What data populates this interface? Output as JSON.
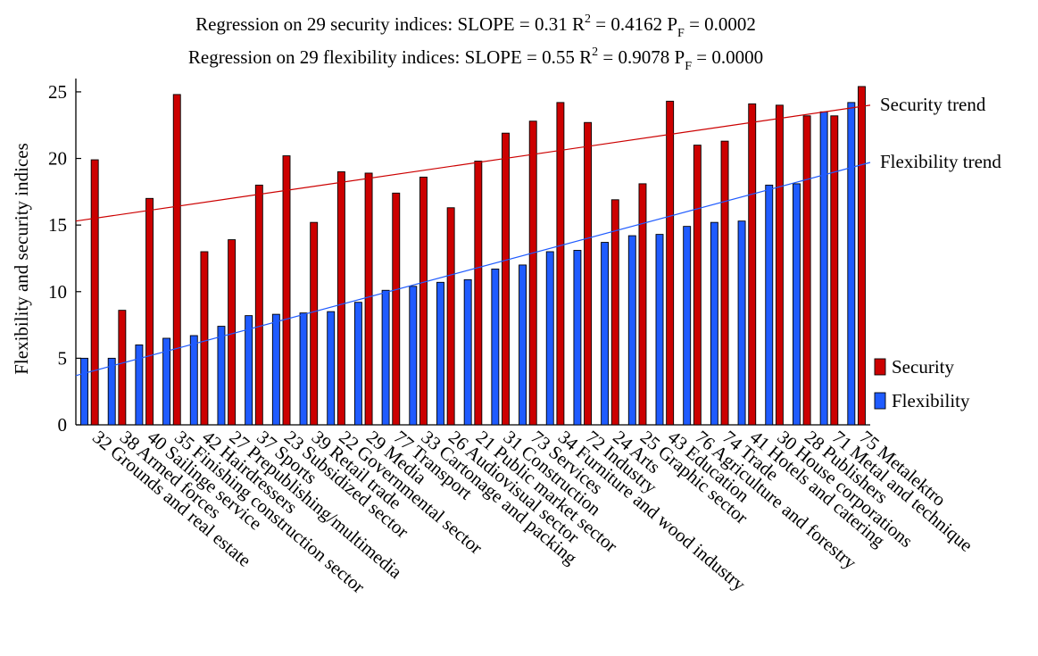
{
  "chart_data": {
    "type": "bar",
    "title_lines": [
      {
        "prefix": "Regression on 29 security indices: SLOPE = 0.31",
        "r2": "0.4162",
        "pf": "0.0002"
      },
      {
        "prefix": "Regression on 29 flexibility indices: SLOPE = 0.55",
        "r2": "0.9078",
        "pf": "0.0000"
      }
    ],
    "ylabel": "Flexibility and security indices",
    "ylim": [
      0,
      26
    ],
    "yticks": [
      0,
      5,
      10,
      15,
      20,
      25
    ],
    "categories": [
      "32 Grounds and real estate",
      "38 Armed forces",
      "40 Sailinge service",
      "35 Finishing construction sector",
      "42 Hairdressers",
      "27 Prepublishing/multimedia",
      "37 Sports",
      "23 Subsidized sector",
      "39 Retail trade",
      "22 Governmental sector",
      "29 Media",
      "77 Transport",
      "33 Cartonage and packing",
      "26 Audiovisual sector",
      "21 Public market sector",
      "31 Construction",
      "73 Services",
      "34 Furniture and wood industry",
      "72 Industry",
      "24 Arts",
      "25 Graphic sector",
      "43 Education",
      "76 Agriculture and forestry",
      "74 Trade",
      "41 Hotels and catering",
      "30 House corporations",
      "28 Publishers",
      "71 Metal and technique",
      "75 Metalektro"
    ],
    "series": [
      {
        "name": "Flexibility",
        "color": "#1f5bff",
        "values": [
          5.0,
          5.0,
          6.0,
          6.5,
          6.7,
          7.4,
          8.2,
          8.3,
          8.4,
          8.5,
          9.2,
          10.1,
          10.4,
          10.7,
          10.9,
          11.7,
          12.0,
          13.0,
          13.1,
          13.7,
          14.2,
          14.3,
          14.9,
          15.2,
          15.3,
          18.0,
          18.1,
          23.5,
          24.2
        ]
      },
      {
        "name": "Security",
        "color": "#cc0000",
        "values": [
          19.9,
          8.6,
          17.0,
          24.8,
          13.0,
          13.9,
          18.0,
          20.2,
          15.2,
          19.0,
          18.9,
          17.4,
          18.6,
          16.3,
          19.8,
          21.9,
          22.8,
          24.2,
          22.7,
          16.9,
          18.1,
          24.3,
          21.0,
          21.3,
          24.1,
          24.0,
          23.2,
          23.2,
          25.4
        ]
      }
    ],
    "trends": [
      {
        "label": "Security trend",
        "color": "#cc0000",
        "start": 15.3,
        "end": 24.0
      },
      {
        "label": "Flexibility trend",
        "color": "#1f5bff",
        "start": 3.7,
        "end": 19.7
      }
    ],
    "legend": {
      "position": "right",
      "items": [
        "Security",
        "Flexibility"
      ]
    },
    "grid": false
  }
}
